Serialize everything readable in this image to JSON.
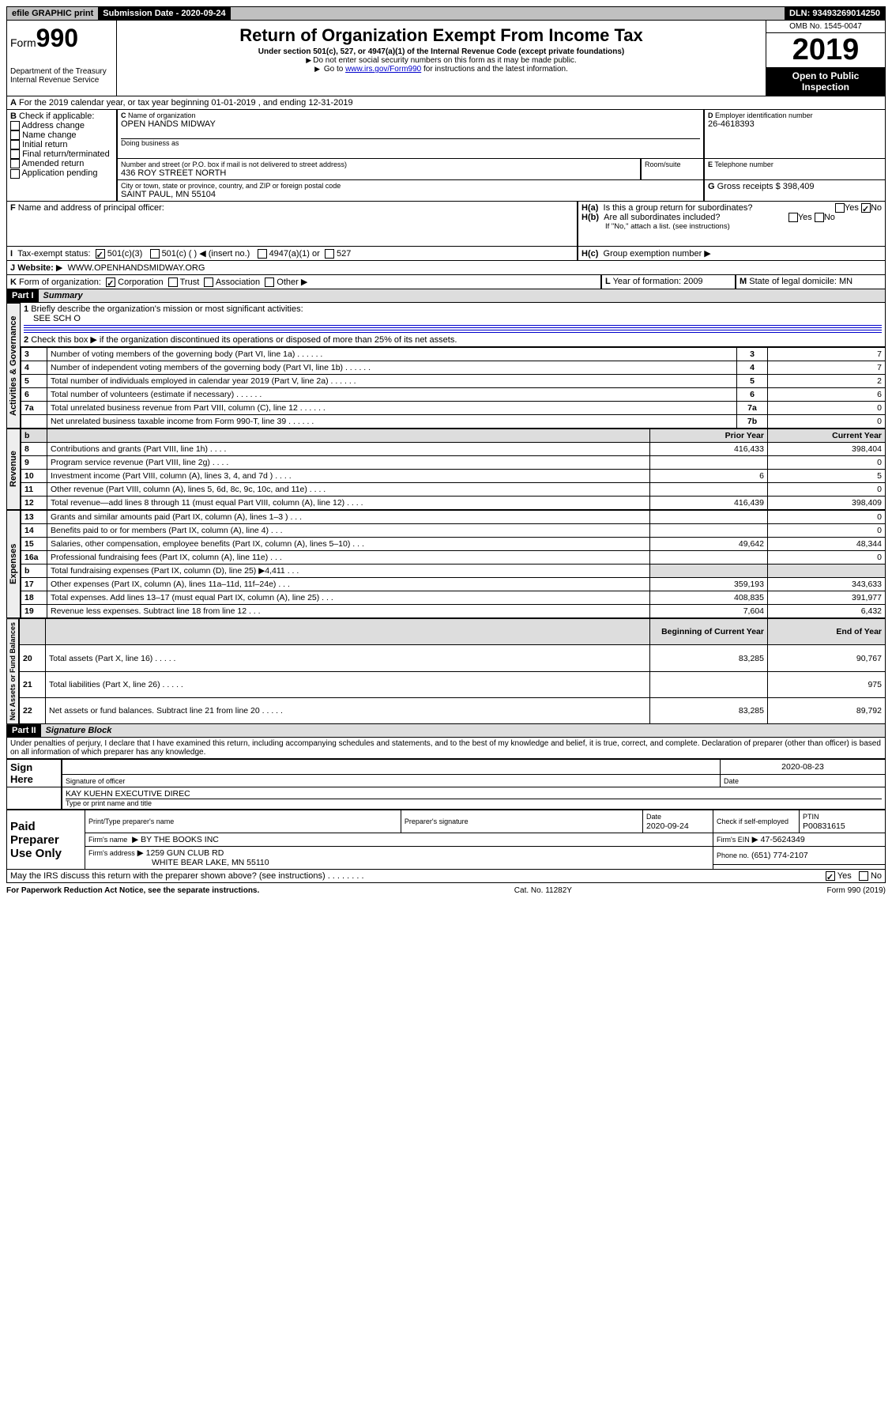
{
  "top": {
    "efile": "efile GRAPHIC print",
    "submission": "Submission Date - 2020-09-24",
    "dln": "DLN: 93493269014250"
  },
  "header": {
    "form_label": "Form",
    "form_num": "990",
    "dept": "Department of the Treasury",
    "irs": "Internal Revenue Service",
    "title": "Return of Organization Exempt From Income Tax",
    "subtitle": "Under section 501(c), 527, or 4947(a)(1) of the Internal Revenue Code (except private foundations)",
    "note1": "Do not enter social security numbers on this form as it may be made public.",
    "note2_a": "Go to ",
    "note2_link": "www.irs.gov/Form990",
    "note2_b": " for instructions and the latest information.",
    "omb": "OMB No. 1545-0047",
    "year": "2019",
    "open": "Open to Public Inspection"
  },
  "line_a": "For the 2019 calendar year, or tax year beginning 01-01-2019    , and ending 12-31-2019",
  "b": {
    "label": "Check if applicable:",
    "items": [
      "Address change",
      "Name change",
      "Initial return",
      "Final return/terminated",
      "Amended return",
      "Application pending"
    ]
  },
  "c": {
    "name_label": "Name of organization",
    "name": "OPEN HANDS MIDWAY",
    "dba_label": "Doing business as",
    "street_label": "Number and street (or P.O. box if mail is not delivered to street address)",
    "room_label": "Room/suite",
    "street": "436 ROY STREET NORTH",
    "city_label": "City or town, state or province, country, and ZIP or foreign postal code",
    "city": "SAINT PAUL, MN  55104"
  },
  "d": {
    "label": "Employer identification number",
    "val": "26-4618393"
  },
  "e": {
    "label": "Telephone number",
    "val": ""
  },
  "g": {
    "label": "Gross receipts $",
    "val": "398,409"
  },
  "f": {
    "label": "Name and address of principal officer:"
  },
  "h": {
    "a": "Is this a group return for subordinates?",
    "b": "Are all subordinates included?",
    "b_note": "If \"No,\" attach a list. (see instructions)",
    "c": "Group exemption number"
  },
  "i": {
    "label": "Tax-exempt status:",
    "opts": [
      "501(c)(3)",
      "501(c) (  ) ◀ (insert no.)",
      "4947(a)(1) or",
      "527"
    ]
  },
  "j": {
    "label": "Website:",
    "val": "WWW.OPENHANDSMIDWAY.ORG"
  },
  "k": {
    "label": "Form of organization:",
    "opts": [
      "Corporation",
      "Trust",
      "Association",
      "Other"
    ]
  },
  "l": {
    "label": "Year of formation:",
    "val": "2009"
  },
  "m": {
    "label": "State of legal domicile:",
    "val": "MN"
  },
  "part1": {
    "hdr": "Part I",
    "title": "Summary"
  },
  "summary": {
    "q1": "Briefly describe the organization's mission or most significant activities:",
    "q1v": "SEE SCH O",
    "q2": "Check this box ▶     if the organization discontinued its operations or disposed of more than 25% of its net assets.",
    "rows_gov": [
      {
        "n": "3",
        "t": "Number of voting members of the governing body (Part VI, line 1a)",
        "box": "3",
        "v": "7"
      },
      {
        "n": "4",
        "t": "Number of independent voting members of the governing body (Part VI, line 1b)",
        "box": "4",
        "v": "7"
      },
      {
        "n": "5",
        "t": "Total number of individuals employed in calendar year 2019 (Part V, line 2a)",
        "box": "5",
        "v": "2"
      },
      {
        "n": "6",
        "t": "Total number of volunteers (estimate if necessary)",
        "box": "6",
        "v": "6"
      },
      {
        "n": "7a",
        "t": "Total unrelated business revenue from Part VIII, column (C), line 12",
        "box": "7a",
        "v": "0"
      },
      {
        "n": "",
        "t": "Net unrelated business taxable income from Form 990-T, line 39",
        "box": "7b",
        "v": "0"
      }
    ],
    "col_prior": "Prior Year",
    "col_curr": "Current Year",
    "rows_rev": [
      {
        "n": "8",
        "t": "Contributions and grants (Part VIII, line 1h)",
        "p": "416,433",
        "c": "398,404"
      },
      {
        "n": "9",
        "t": "Program service revenue (Part VIII, line 2g)",
        "p": "",
        "c": "0"
      },
      {
        "n": "10",
        "t": "Investment income (Part VIII, column (A), lines 3, 4, and 7d )",
        "p": "6",
        "c": "5"
      },
      {
        "n": "11",
        "t": "Other revenue (Part VIII, column (A), lines 5, 6d, 8c, 9c, 10c, and 11e)",
        "p": "",
        "c": "0"
      },
      {
        "n": "12",
        "t": "Total revenue—add lines 8 through 11 (must equal Part VIII, column (A), line 12)",
        "p": "416,439",
        "c": "398,409"
      }
    ],
    "rows_exp": [
      {
        "n": "13",
        "t": "Grants and similar amounts paid (Part IX, column (A), lines 1–3 )",
        "p": "",
        "c": "0"
      },
      {
        "n": "14",
        "t": "Benefits paid to or for members (Part IX, column (A), line 4)",
        "p": "",
        "c": "0"
      },
      {
        "n": "15",
        "t": "Salaries, other compensation, employee benefits (Part IX, column (A), lines 5–10)",
        "p": "49,642",
        "c": "48,344"
      },
      {
        "n": "16a",
        "t": "Professional fundraising fees (Part IX, column (A), line 11e)",
        "p": "",
        "c": "0"
      },
      {
        "n": "b",
        "t": "Total fundraising expenses (Part IX, column (D), line 25) ▶4,411",
        "p": "shaded",
        "c": "shaded"
      },
      {
        "n": "17",
        "t": "Other expenses (Part IX, column (A), lines 11a–11d, 11f–24e)",
        "p": "359,193",
        "c": "343,633"
      },
      {
        "n": "18",
        "t": "Total expenses. Add lines 13–17 (must equal Part IX, column (A), line 25)",
        "p": "408,835",
        "c": "391,977"
      },
      {
        "n": "19",
        "t": "Revenue less expenses. Subtract line 18 from line 12",
        "p": "7,604",
        "c": "6,432"
      }
    ],
    "col_boy": "Beginning of Current Year",
    "col_eoy": "End of Year",
    "rows_na": [
      {
        "n": "20",
        "t": "Total assets (Part X, line 16)",
        "p": "83,285",
        "c": "90,767"
      },
      {
        "n": "21",
        "t": "Total liabilities (Part X, line 26)",
        "p": "",
        "c": "975"
      },
      {
        "n": "22",
        "t": "Net assets or fund balances. Subtract line 21 from line 20",
        "p": "83,285",
        "c": "89,792"
      }
    ]
  },
  "part2": {
    "hdr": "Part II",
    "title": "Signature Block"
  },
  "sig": {
    "penalty": "Under penalties of perjury, I declare that I have examined this return, including accompanying schedules and statements, and to the best of my knowledge and belief, it is true, correct, and complete. Declaration of preparer (other than officer) is based on all information of which preparer has any knowledge.",
    "sign_here": "Sign Here",
    "sig_officer": "Signature of officer",
    "date": "2020-08-23",
    "date_lbl": "Date",
    "name": "KAY KUEHN  EXECUTIVE DIREC",
    "name_lbl": "Type or print name and title",
    "paid": "Paid Preparer Use Only",
    "prep_name_lbl": "Print/Type preparer's name",
    "prep_sig_lbl": "Preparer's signature",
    "prep_date_lbl": "Date",
    "prep_date": "2020-09-24",
    "check_lbl": "Check      if self-employed",
    "ptin_lbl": "PTIN",
    "ptin": "P00831615",
    "firm_name_lbl": "Firm's name",
    "firm_name": "BY THE BOOKS INC",
    "firm_ein_lbl": "Firm's EIN",
    "firm_ein": "47-5624349",
    "firm_addr_lbl": "Firm's address",
    "firm_addr1": "1259 GUN CLUB RD",
    "firm_addr2": "WHITE BEAR LAKE, MN  55110",
    "phone_lbl": "Phone no.",
    "phone": "(651) 774-2107",
    "discuss": "May the IRS discuss this return with the preparer shown above? (see instructions)"
  },
  "footer": {
    "pra": "For Paperwork Reduction Act Notice, see the separate instructions.",
    "cat": "Cat. No. 11282Y",
    "form": "Form 990 (2019)"
  },
  "labels": {
    "yes": "Yes",
    "no": "No",
    "b_tag": "B",
    "c_tag": "C",
    "d_tag": "D",
    "e_tag": "E",
    "f_tag": "F",
    "g_tag": "G",
    "h_a": "H(a)",
    "h_b": "H(b)",
    "h_c": "H(c)",
    "a_tag": "A",
    "i_tag": "I",
    "j_tag": "J",
    "k_tag": "K",
    "l_tag": "L",
    "m_tag": "M",
    "gov": "Activities & Governance",
    "rev": "Revenue",
    "exp": "Expenses",
    "na": "Net Assets or Fund Balances"
  }
}
